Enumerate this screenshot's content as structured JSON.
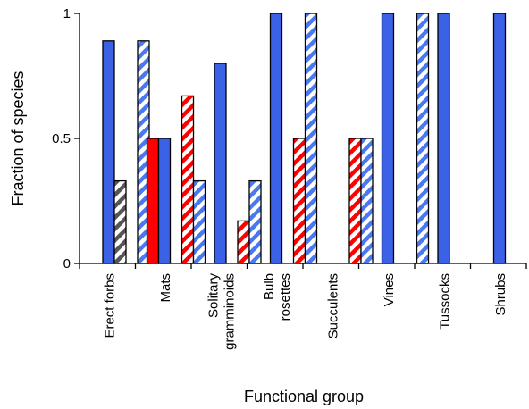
{
  "chart_data": {
    "type": "bar",
    "xlabel": "Functional group",
    "ylabel": "Fraction of species",
    "ylim": [
      0,
      1
    ],
    "yticks": [
      {
        "value": 0,
        "label": "0"
      },
      {
        "value": 0.5,
        "label": "0.5"
      },
      {
        "value": 1,
        "label": "1"
      }
    ],
    "categories": [
      [
        "Erect forbs"
      ],
      [
        "Mats"
      ],
      [
        "Solitary",
        "gramminoids"
      ],
      [
        "Bulb",
        "rosettes"
      ],
      [
        "Succulents"
      ],
      [
        "Vines"
      ],
      [
        "Tussocks"
      ],
      [
        "Shrubs"
      ]
    ],
    "series": [
      {
        "style": "solid",
        "color": "#ff0000",
        "values": [
          0,
          0.5,
          0,
          0,
          0,
          0,
          0,
          0
        ]
      },
      {
        "style": "solid",
        "color": "#3b62e6",
        "values": [
          0.89,
          0.5,
          0.8,
          1,
          0,
          1,
          1,
          1
        ]
      },
      {
        "style": "hatched",
        "color": "#555555",
        "values": [
          0.33,
          0,
          0,
          0,
          0,
          0,
          0,
          0
        ]
      },
      {
        "style": "hatched",
        "color": "#ff0000",
        "values": [
          0,
          0.67,
          0.17,
          0.5,
          0.5,
          0,
          0,
          0
        ]
      },
      {
        "style": "hatched",
        "color": "#4a78f0",
        "values": [
          0.89,
          0.33,
          0.33,
          1,
          0.5,
          1,
          0,
          0
        ]
      }
    ]
  }
}
